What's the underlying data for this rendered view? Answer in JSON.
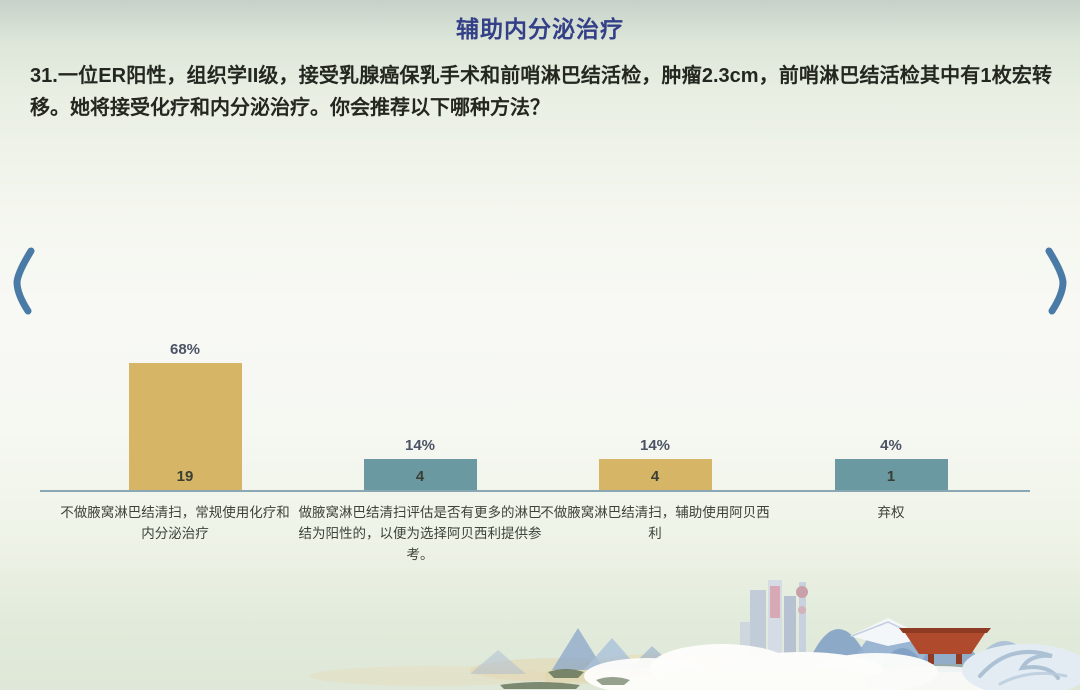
{
  "title": "辅助内分泌治疗",
  "question": "31.一位ER阳性，组织学II级，接受乳腺癌保乳手术和前哨淋巴结活检，肿瘤2.3cm，前哨淋巴结活检其中有1枚宏转移。她将接受化疗和内分泌治疗。你会推荐以下哪种方法？",
  "chart_data": {
    "type": "bar",
    "title": "",
    "categories": [
      "不做腋窝淋巴结清扫，常规使用化疗和内分泌治疗",
      "做腋窝淋巴结清扫评估是否有更多的淋巴结为阳性的，以便为选择阿贝西利提供参考。",
      "不做腋窝淋巴结清扫，辅助使用阿贝西利",
      "弃权"
    ],
    "values": [
      19,
      4,
      4,
      1
    ],
    "percent_labels": [
      "68%",
      "14%",
      "14%",
      "4%"
    ],
    "bar_colors": [
      "#d7b566",
      "#6b99a1",
      "#d7b566",
      "#6b99a1"
    ],
    "ylim": [
      0,
      19
    ],
    "grid": false,
    "legend": false,
    "xlabel": "",
    "ylabel": ""
  },
  "colors": {
    "title_text": "#333f86",
    "question_text": "#23271f",
    "percent_text": "#4b5365",
    "value_text": "#3a3f35",
    "axis_line": "#8aa7b5",
    "gold_bar": "#d7b566",
    "teal_bar": "#6b99a1",
    "chevron": "#4a7ba6"
  }
}
